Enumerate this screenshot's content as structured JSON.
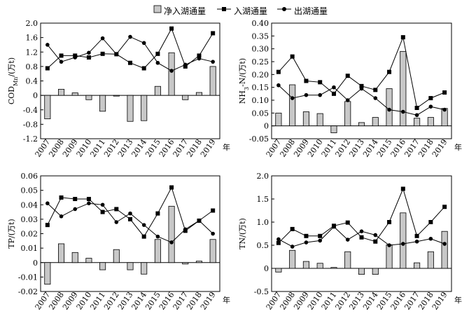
{
  "legend": {
    "net_label": "净入湖通量",
    "in_label": "入湖通量",
    "out_label": "出湖通量"
  },
  "chart_data": [
    {
      "type": "bar",
      "ylabel_main": "COD",
      "ylabel_sub": "Mn",
      "ylabel_unit": "/(万t)",
      "xunit": "年",
      "categories": [
        "2007",
        "2008",
        "2009",
        "2010",
        "2011",
        "2012",
        "2013",
        "2014",
        "2015",
        "2016",
        "2017",
        "2018",
        "2019"
      ],
      "ylim": [
        -1.2,
        2.0
      ],
      "yticks": [
        "-1.2",
        "-0.8",
        "-0.4",
        "0",
        "0.4",
        "0.8",
        "1.2",
        "1.6",
        "2.0"
      ],
      "ytick_values": [
        -1.2,
        -0.8,
        -0.4,
        0,
        0.4,
        0.8,
        1.2,
        1.6,
        2.0
      ],
      "series": [
        {
          "name": "净入湖通量",
          "kind": "bar",
          "values": [
            -0.65,
            0.17,
            0.07,
            -0.12,
            -0.44,
            -0.02,
            -0.72,
            -0.7,
            0.25,
            1.18,
            -0.12,
            0.08,
            0.8
          ]
        },
        {
          "name": "入湖通量",
          "kind": "line-square",
          "values": [
            0.75,
            1.1,
            1.1,
            1.05,
            1.15,
            1.14,
            0.9,
            0.75,
            1.15,
            1.85,
            0.8,
            1.1,
            1.72
          ]
        },
        {
          "name": "出湖通量",
          "kind": "line-dot",
          "values": [
            1.4,
            0.93,
            1.05,
            1.18,
            1.58,
            1.14,
            1.62,
            1.45,
            0.9,
            0.68,
            0.85,
            1.02,
            0.93
          ]
        }
      ]
    },
    {
      "type": "bar",
      "ylabel_main": "NH",
      "ylabel_sub": "3",
      "ylabel_unit": "-N/(万t)",
      "xunit": "年",
      "categories": [
        "2007",
        "2008",
        "2009",
        "2010",
        "2011",
        "2012",
        "2013",
        "2014",
        "2015",
        "2016",
        "2017",
        "2018",
        "2019"
      ],
      "ylim": [
        -0.05,
        0.4
      ],
      "yticks": [
        "-0.05",
        "0",
        "0.05",
        "0.10",
        "0.15",
        "0.20",
        "0.25",
        "0.30",
        "0.35",
        "0.40"
      ],
      "ytick_values": [
        -0.05,
        0,
        0.05,
        0.1,
        0.15,
        0.2,
        0.25,
        0.3,
        0.35,
        0.4
      ],
      "series": [
        {
          "name": "净入湖通量",
          "kind": "bar",
          "values": [
            0.05,
            0.16,
            0.055,
            0.048,
            -0.027,
            0.095,
            0.013,
            0.033,
            0.145,
            0.29,
            0.03,
            0.033,
            0.068
          ]
        },
        {
          "name": "入湖通量",
          "kind": "line-square",
          "values": [
            0.21,
            0.27,
            0.175,
            0.17,
            0.125,
            0.195,
            0.155,
            0.14,
            0.21,
            0.345,
            0.07,
            0.108,
            0.13
          ]
        },
        {
          "name": "出湖通量",
          "kind": "line-dot",
          "values": [
            0.158,
            0.108,
            0.12,
            0.12,
            0.15,
            0.1,
            0.145,
            0.108,
            0.063,
            0.055,
            0.042,
            0.075,
            0.063
          ]
        }
      ]
    },
    {
      "type": "bar",
      "ylabel_main": "TP",
      "ylabel_sub": "",
      "ylabel_unit": "/(万t)",
      "xunit": "年",
      "categories": [
        "2007",
        "2008",
        "2009",
        "2010",
        "2011",
        "2012",
        "2013",
        "2014",
        "2015",
        "2016",
        "2017",
        "2018",
        "2019"
      ],
      "ylim": [
        -0.02,
        0.06
      ],
      "yticks": [
        "-0.02",
        "-0.01",
        "0",
        "0.01",
        "0.02",
        "0.03",
        "0.04",
        "0.05",
        "0.06"
      ],
      "ytick_values": [
        -0.02,
        -0.01,
        0,
        0.01,
        0.02,
        0.03,
        0.04,
        0.05,
        0.06
      ],
      "series": [
        {
          "name": "净入湖通量",
          "kind": "bar",
          "values": [
            -0.015,
            0.013,
            0.007,
            0.003,
            -0.005,
            0.009,
            -0.005,
            -0.008,
            0.016,
            0.039,
            -0.001,
            0.001,
            0.016
          ]
        },
        {
          "name": "入湖通量",
          "kind": "line-square",
          "values": [
            0.026,
            0.045,
            0.044,
            0.044,
            0.035,
            0.037,
            0.03,
            0.018,
            0.034,
            0.052,
            0.022,
            0.029,
            0.036
          ]
        },
        {
          "name": "出湖通量",
          "kind": "line-dot",
          "values": [
            0.041,
            0.032,
            0.037,
            0.041,
            0.04,
            0.028,
            0.034,
            0.026,
            0.018,
            0.014,
            0.023,
            0.029,
            0.02
          ]
        }
      ]
    },
    {
      "type": "bar",
      "ylabel_main": "TN",
      "ylabel_sub": "",
      "ylabel_unit": "/(万t)",
      "xunit": "年",
      "categories": [
        "2007",
        "2008",
        "2009",
        "2010",
        "2011",
        "2012",
        "2013",
        "2014",
        "2015",
        "2016",
        "2017",
        "2018",
        "2019"
      ],
      "ylim": [
        -0.5,
        2.0
      ],
      "yticks": [
        "-0.5",
        "0",
        "0.5",
        "1.0",
        "1.5",
        "2.0"
      ],
      "ytick_values": [
        -0.5,
        0,
        0.5,
        1.0,
        1.5,
        2.0
      ],
      "series": [
        {
          "name": "净入湖通量",
          "kind": "bar",
          "values": [
            -0.08,
            0.39,
            0.15,
            0.11,
            0.02,
            0.36,
            -0.13,
            -0.13,
            0.51,
            1.2,
            0.12,
            0.36,
            0.8
          ]
        },
        {
          "name": "入湖通量",
          "kind": "line-square",
          "values": [
            0.55,
            0.85,
            0.7,
            0.7,
            0.92,
            0.99,
            0.67,
            0.58,
            1.0,
            1.72,
            0.7,
            1.0,
            1.33
          ]
        },
        {
          "name": "出湖通量",
          "kind": "line-dot",
          "values": [
            0.63,
            0.47,
            0.56,
            0.6,
            0.9,
            0.62,
            0.8,
            0.72,
            0.5,
            0.53,
            0.58,
            0.64,
            0.53
          ]
        }
      ]
    }
  ]
}
